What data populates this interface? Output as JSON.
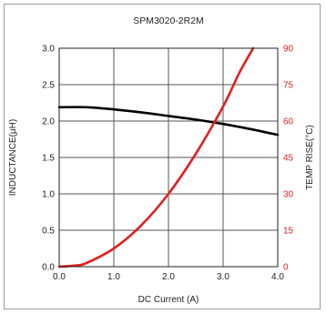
{
  "chart_data": {
    "type": "line",
    "title": "SPM3020-2R2M",
    "xlabel": "DC Current (A)",
    "ylabel_left": "INDUCTANCE(μH)",
    "ylabel_right": "TEMP RISE(°C)",
    "xlim": [
      0.0,
      4.0
    ],
    "ylim_left": [
      0.0,
      3.0
    ],
    "ylim_right": [
      0,
      90
    ],
    "x_ticks": [
      "0.0",
      "1.0",
      "2.0",
      "3.0",
      "4.0"
    ],
    "y_ticks_left": [
      "0.0",
      "0.5",
      "1.0",
      "1.5",
      "2.0",
      "2.5",
      "3.0"
    ],
    "y_ticks_right": [
      "0",
      "15",
      "30",
      "45",
      "60",
      "75",
      "90"
    ],
    "grid": true,
    "colors": {
      "inductance": "#000000",
      "temp_rise": "#e02020",
      "grid": "#555555"
    },
    "series": [
      {
        "axis": "left",
        "color": "#000000",
        "x": [
          0.0,
          0.5,
          1.0,
          1.5,
          2.0,
          2.5,
          3.0,
          3.5,
          4.0
        ],
        "y": [
          2.19,
          2.19,
          2.16,
          2.12,
          2.07,
          2.02,
          1.96,
          1.89,
          1.81
        ]
      },
      {
        "axis": "right",
        "color": "#e02020",
        "x": [
          0.0,
          0.3,
          0.5,
          1.0,
          1.5,
          2.0,
          2.5,
          3.0,
          3.3,
          3.55
        ],
        "y": [
          0,
          0.5,
          1.5,
          7.5,
          17,
          30,
          46.5,
          66,
          80,
          90
        ]
      }
    ]
  }
}
